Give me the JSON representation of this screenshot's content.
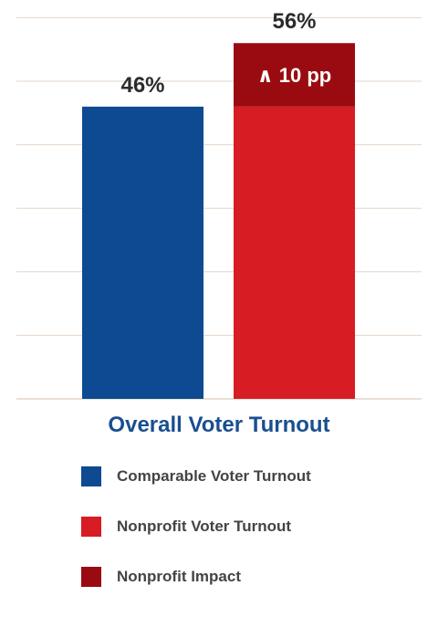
{
  "chart_data": {
    "type": "bar",
    "xlabel": "Overall Voter Turnout",
    "ylim": [
      0,
      60
    ],
    "grid": true,
    "categories": [
      "Comparable Voter Turnout",
      "Nonprofit Voter Turnout"
    ],
    "series": [
      {
        "name": "Comparable Voter Turnout",
        "values": [
          46,
          null
        ],
        "color": "#0d4a91"
      },
      {
        "name": "Nonprofit Voter Turnout",
        "values": [
          null,
          46
        ],
        "color": "#d71c24"
      },
      {
        "name": "Nonprofit Impact",
        "values": [
          null,
          10
        ],
        "color": "#9a0b11"
      }
    ],
    "data_labels": [
      "46%",
      "56%"
    ],
    "annotation": "∧ 10 pp",
    "legend_position": "bottom"
  }
}
